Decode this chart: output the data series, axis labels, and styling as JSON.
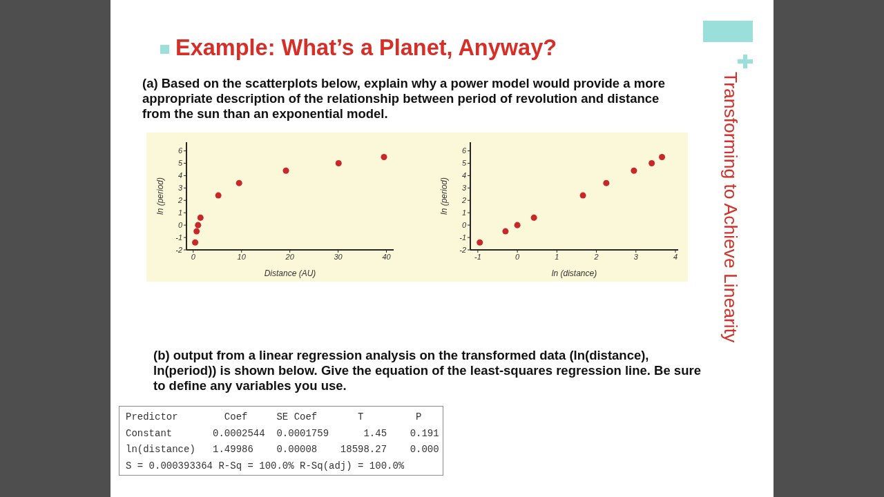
{
  "chart_data": [
    {
      "type": "scatter",
      "title": "Example: What’s a Planet, Anyway?",
      "subtitle": "(a) Based on the scatterplots below, explain why a power model would provide a more appropriate description of the relationship between period of revolution and distance from the sun than an exponential model.",
      "annotations": [
        "Transforming to Achieve Linearity"
      ],
      "xlabel": "Distance (AU)",
      "ylabel": "ln (period)",
      "x": [
        0.4,
        0.7,
        1,
        1.5,
        5.2,
        9.5,
        19.2,
        30.1,
        39.5
      ],
      "values": [
        -1.4,
        -0.5,
        0,
        0.6,
        2.4,
        3.4,
        4.4,
        5.0,
        5.5
      ],
      "color": "#c9282b",
      "marker": "circle",
      "xlim": [
        -1.4,
        41.5
      ],
      "ylim": [
        -2,
        6.7
      ],
      "xticks": [
        0,
        10,
        20,
        30,
        40
      ],
      "yticks": [
        -2,
        -1,
        0,
        1,
        2,
        3,
        4,
        5,
        6
      ]
    },
    {
      "type": "scatter",
      "xlabel": "ln (distance)",
      "ylabel": "ln (period)",
      "x": [
        -0.95,
        -0.3,
        0,
        0.42,
        1.66,
        2.25,
        2.95,
        3.4,
        3.66
      ],
      "values": [
        -1.4,
        -0.5,
        0,
        0.6,
        2.4,
        3.4,
        4.4,
        5.0,
        5.5
      ],
      "color": "#c9282b",
      "marker": "circle",
      "xlim": [
        -1.19,
        4.07
      ],
      "ylim": [
        -2,
        6.7
      ],
      "xticks": [
        -1,
        0,
        1,
        2,
        3,
        4
      ],
      "yticks": [
        -2,
        -1,
        0,
        1,
        2,
        3,
        4,
        5,
        6
      ]
    },
    {
      "type": "other",
      "annotations": [
        "(b) output from a linear regression analysis on the transformed data (ln(distance), ln(period)) is shown below. Give the equation of the least-squares regression line. Be sure to define any variables you use.",
        "Predictor        Coef     SE Coef       T         P",
        "Constant       0.0002544  0.0001759      1.45    0.191",
        "ln(distance)   1.49986    0.00008    18598.27    0.000",
        "S = 0.000393364 R-Sq = 100.0% R-Sq(adj) = 100.0%"
      ]
    }
  ]
}
